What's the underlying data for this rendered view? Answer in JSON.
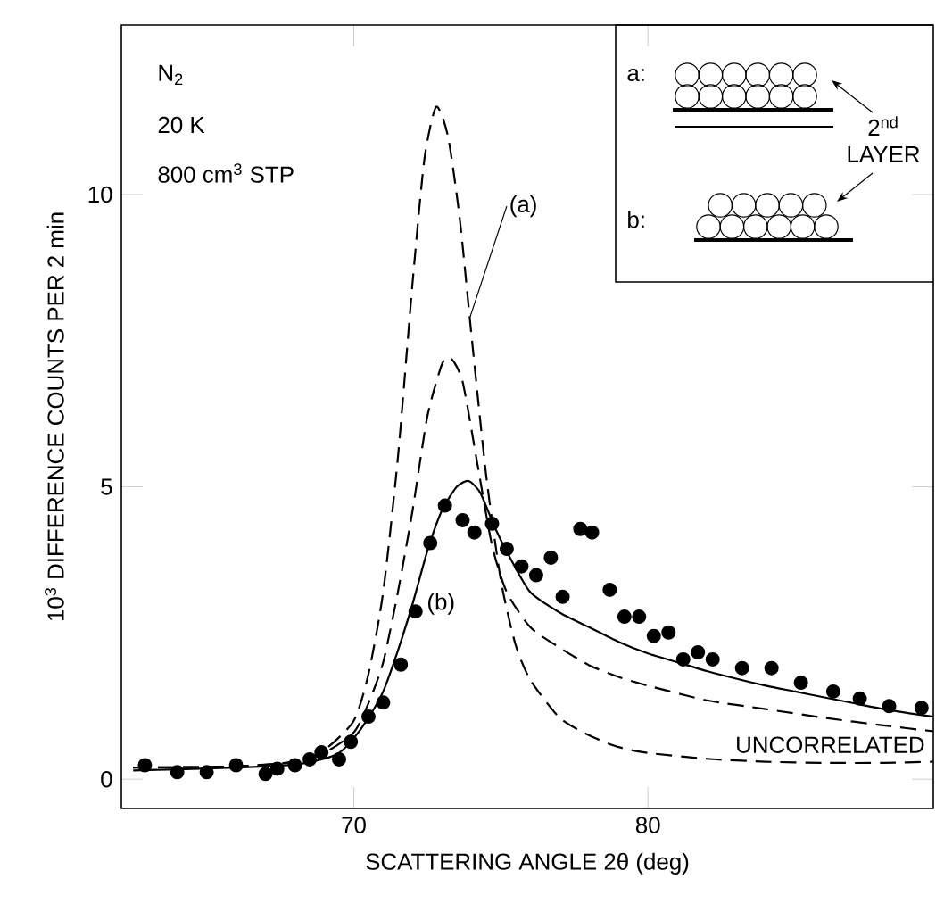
{
  "chart_data": {
    "type": "line",
    "xlabel": "SCATTERING ANGLE 2θ (deg)",
    "ylabel": "10$^{3}$ DIFFERENCE COUNTS PER 2 min",
    "annotations": [
      "N$_{2}$",
      "20 K",
      "800 cm$^{3}$ STP",
      "a:",
      "b:",
      "2$^{nd}$ LAYER"
    ],
    "xlim": [
      62.1,
      89.7
    ],
    "ylim": [
      -0.5,
      12.9
    ],
    "xticks": [
      70,
      80
    ],
    "yticks": [
      0,
      5,
      10
    ],
    "grid": false,
    "legend": false,
    "series": [
      {
        "name": "(a)",
        "color": "#000000",
        "line_style": "dashed",
        "x": [
          62.5,
          66,
          68,
          69,
          70,
          70.5,
          71,
          71.5,
          72,
          72.4,
          72.8,
          73.2,
          73.6,
          74,
          74.5,
          75,
          75.5,
          76,
          77,
          78,
          79,
          80,
          82,
          84,
          86,
          88,
          89.7
        ],
        "values": [
          0.2,
          0.22,
          0.3,
          0.5,
          1.0,
          1.8,
          3.2,
          5.5,
          8.5,
          10.6,
          11.5,
          11.0,
          9.6,
          7.6,
          5.2,
          3.4,
          2.3,
          1.7,
          1.05,
          0.75,
          0.55,
          0.45,
          0.35,
          0.3,
          0.28,
          0.28,
          0.3
        ]
      },
      {
        "name": "UNCORRELATED",
        "color": "#000000",
        "line_style": "dashed",
        "x": [
          62.5,
          66,
          68,
          69,
          70,
          70.5,
          71,
          71.5,
          72,
          72.5,
          73,
          73.3,
          73.7,
          74.2,
          74.7,
          75.2,
          76,
          77,
          78,
          79,
          80,
          82,
          84,
          86,
          88,
          89.7
        ],
        "values": [
          0.2,
          0.22,
          0.3,
          0.45,
          0.8,
          1.3,
          2.0,
          3.2,
          4.6,
          6.2,
          7.1,
          7.2,
          6.8,
          5.4,
          4.0,
          3.2,
          2.6,
          2.25,
          1.95,
          1.75,
          1.6,
          1.35,
          1.2,
          1.05,
          0.92,
          0.82
        ]
      },
      {
        "name": "(b)",
        "color": "#000000",
        "line_style": "solid",
        "x": [
          62.5,
          64,
          66,
          68,
          69,
          69.5,
          70,
          70.5,
          71,
          71.5,
          72,
          72.5,
          73,
          73.5,
          73.9,
          74.3,
          74.8,
          75.3,
          76,
          77,
          78,
          79,
          80,
          81,
          82,
          83,
          84,
          85,
          86,
          87,
          88,
          89,
          89.7
        ],
        "values": [
          0.15,
          0.17,
          0.2,
          0.25,
          0.35,
          0.45,
          0.7,
          1.05,
          1.5,
          2.2,
          3.0,
          3.9,
          4.6,
          5.0,
          5.1,
          4.9,
          4.3,
          3.8,
          3.2,
          2.85,
          2.6,
          2.35,
          2.15,
          2.0,
          1.85,
          1.72,
          1.6,
          1.5,
          1.4,
          1.3,
          1.2,
          1.12,
          1.07
        ]
      },
      {
        "type": "scatter",
        "color": "#000000",
        "marker": "circle",
        "x": [
          62.9,
          64.0,
          65.0,
          66.0,
          67.0,
          67.4,
          68.0,
          68.5,
          68.9,
          69.5,
          69.9,
          70.5,
          71.0,
          71.6,
          72.1,
          72.6,
          73.1,
          73.7,
          74.1,
          74.7,
          75.2,
          75.7,
          76.2,
          76.7,
          77.1,
          77.7,
          78.1,
          78.7,
          79.2,
          79.7,
          80.2,
          80.7,
          81.2,
          81.7,
          82.2,
          83.2,
          84.2,
          85.2,
          86.3,
          87.2,
          88.2,
          89.3
        ],
        "values": [
          0.24,
          0.12,
          0.12,
          0.24,
          0.09,
          0.18,
          0.24,
          0.34,
          0.46,
          0.34,
          0.64,
          1.07,
          1.31,
          1.96,
          2.87,
          4.04,
          4.68,
          4.43,
          4.22,
          4.37,
          3.94,
          3.64,
          3.49,
          3.79,
          3.12,
          4.28,
          4.22,
          3.24,
          2.78,
          2.78,
          2.45,
          2.51,
          2.05,
          2.17,
          2.05,
          1.9,
          1.9,
          1.65,
          1.5,
          1.38,
          1.25,
          1.22
        ]
      }
    ]
  }
}
